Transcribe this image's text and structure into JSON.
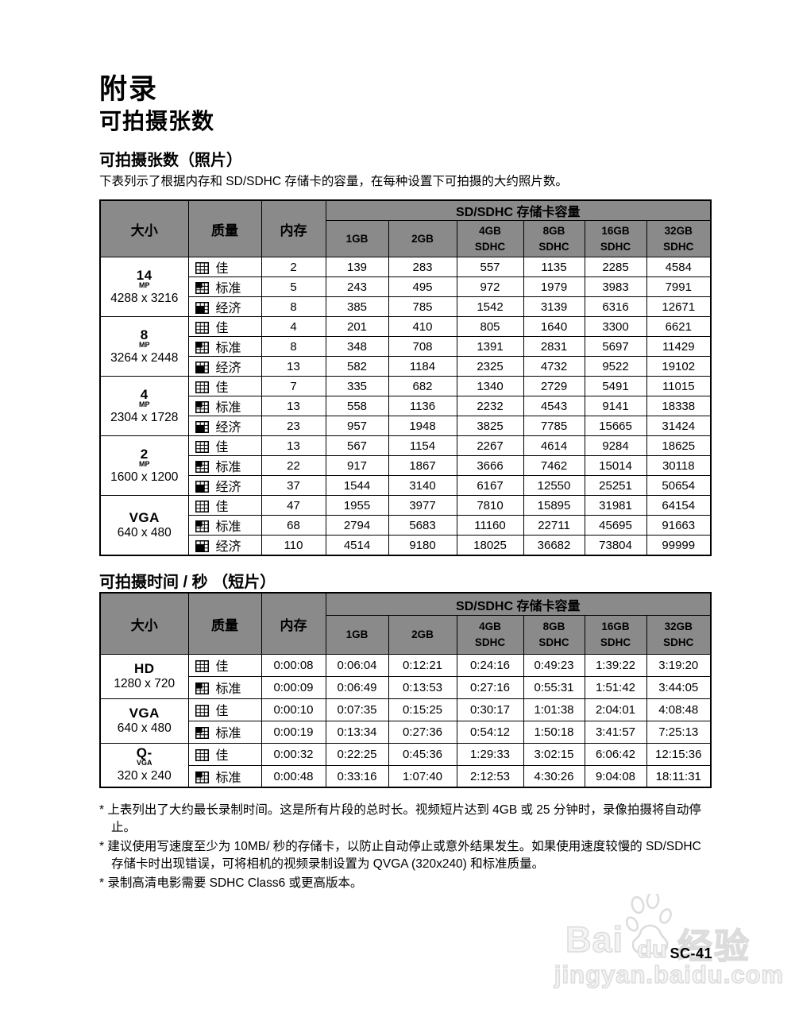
{
  "page": {
    "title": "附录",
    "subtitle": "可拍摄张数",
    "page_number": "SC-41"
  },
  "photo_section": {
    "title": "可拍摄张数（照片）",
    "description": "下表列示了根据内存和 SD/SDHC 存储卡的容量，在每种设置下可拍摄的大约照片数。"
  },
  "video_section": {
    "title": "可拍摄时间 / 秒 （短片）"
  },
  "table_header": {
    "size": "大小",
    "quality": "质量",
    "memory": "内存",
    "card_group": "SD/SDHC 存储卡容量",
    "card_columns": [
      [
        "1GB"
      ],
      [
        "2GB"
      ],
      [
        "4GB",
        "SDHC"
      ],
      [
        "8GB",
        "SDHC"
      ],
      [
        "16GB",
        "SDHC"
      ],
      [
        "32GB",
        "SDHC"
      ]
    ]
  },
  "quality_labels": {
    "fine": "佳",
    "standard": "标准",
    "economy": "经济"
  },
  "colors": {
    "header_bg": "#8a8a8a",
    "border": "#000000",
    "watermark": "#dcdcdc"
  },
  "photo_table": {
    "groups": [
      {
        "size": {
          "big": "14",
          "sub": "MP",
          "res": "4288 x 3216"
        },
        "rows": [
          {
            "quality": "fine",
            "values": [
              "2",
              "139",
              "283",
              "557",
              "1135",
              "2285",
              "4584"
            ]
          },
          {
            "quality": "standard",
            "values": [
              "5",
              "243",
              "495",
              "972",
              "1979",
              "3983",
              "7991"
            ]
          },
          {
            "quality": "economy",
            "values": [
              "8",
              "385",
              "785",
              "1542",
              "3139",
              "6316",
              "12671"
            ]
          }
        ]
      },
      {
        "size": {
          "big": "8",
          "sub": "MP",
          "res": "3264 x 2448"
        },
        "rows": [
          {
            "quality": "fine",
            "values": [
              "4",
              "201",
              "410",
              "805",
              "1640",
              "3300",
              "6621"
            ]
          },
          {
            "quality": "standard",
            "values": [
              "8",
              "348",
              "708",
              "1391",
              "2831",
              "5697",
              "11429"
            ]
          },
          {
            "quality": "economy",
            "values": [
              "13",
              "582",
              "1184",
              "2325",
              "4732",
              "9522",
              "19102"
            ]
          }
        ]
      },
      {
        "size": {
          "big": "4",
          "sub": "MP",
          "res": "2304 x 1728"
        },
        "rows": [
          {
            "quality": "fine",
            "values": [
              "7",
              "335",
              "682",
              "1340",
              "2729",
              "5491",
              "11015"
            ]
          },
          {
            "quality": "standard",
            "values": [
              "13",
              "558",
              "1136",
              "2232",
              "4543",
              "9141",
              "18338"
            ]
          },
          {
            "quality": "economy",
            "values": [
              "23",
              "957",
              "1948",
              "3825",
              "7785",
              "15665",
              "31424"
            ]
          }
        ]
      },
      {
        "size": {
          "big": "2",
          "sub": "MP",
          "res": "1600 x 1200"
        },
        "rows": [
          {
            "quality": "fine",
            "values": [
              "13",
              "567",
              "1154",
              "2267",
              "4614",
              "9284",
              "18625"
            ]
          },
          {
            "quality": "standard",
            "values": [
              "22",
              "917",
              "1867",
              "3666",
              "7462",
              "15014",
              "30118"
            ]
          },
          {
            "quality": "economy",
            "values": [
              "37",
              "1544",
              "3140",
              "6167",
              "12550",
              "25251",
              "50654"
            ]
          }
        ]
      },
      {
        "size": {
          "big": "VGA",
          "sub": "",
          "res": "640 x 480"
        },
        "rows": [
          {
            "quality": "fine",
            "values": [
              "47",
              "1955",
              "3977",
              "7810",
              "15895",
              "31981",
              "64154"
            ]
          },
          {
            "quality": "standard",
            "values": [
              "68",
              "2794",
              "5683",
              "11160",
              "22711",
              "45695",
              "91663"
            ]
          },
          {
            "quality": "economy",
            "values": [
              "110",
              "4514",
              "9180",
              "18025",
              "36682",
              "73804",
              "99999"
            ]
          }
        ]
      }
    ]
  },
  "video_table": {
    "groups": [
      {
        "size": {
          "big": "HD",
          "sub": "",
          "res": "1280 x 720"
        },
        "rows": [
          {
            "quality": "fine",
            "values": [
              "0:00:08",
              "0:06:04",
              "0:12:21",
              "0:24:16",
              "0:49:23",
              "1:39:22",
              "3:19:20"
            ]
          },
          {
            "quality": "standard",
            "values": [
              "0:00:09",
              "0:06:49",
              "0:13:53",
              "0:27:16",
              "0:55:31",
              "1:51:42",
              "3:44:05"
            ]
          }
        ]
      },
      {
        "size": {
          "big": "VGA",
          "sub": "",
          "res": "640 x 480"
        },
        "rows": [
          {
            "quality": "fine",
            "values": [
              "0:00:10",
              "0:07:35",
              "0:15:25",
              "0:30:17",
              "1:01:38",
              "2:04:01",
              "4:08:48"
            ]
          },
          {
            "quality": "standard",
            "values": [
              "0:00:19",
              "0:13:34",
              "0:27:36",
              "0:54:12",
              "1:50:18",
              "3:41:57",
              "7:25:13"
            ]
          }
        ]
      },
      {
        "size": {
          "big": "Q-",
          "sub": "VGA",
          "res": "320 x 240"
        },
        "rows": [
          {
            "quality": "fine",
            "values": [
              "0:00:32",
              "0:22:25",
              "0:45:36",
              "1:29:33",
              "3:02:15",
              "6:06:42",
              "12:15:36"
            ]
          },
          {
            "quality": "standard",
            "values": [
              "0:00:48",
              "0:33:16",
              "1:07:40",
              "2:12:53",
              "4:30:26",
              "9:04:08",
              "18:11:31"
            ]
          }
        ]
      }
    ]
  },
  "footnotes": [
    "* 上表列出了大约最长录制时间。这是所有片段的总时长。视频短片达到 4GB 或 25 分钟时，录像拍摄将自动停止。",
    "* 建议使用写速度至少为 10MB/ 秒的存储卡，以防止自动停止或意外结果发生。如果使用速度较慢的 SD/SDHC 存储卡时出现错误，可将相机的视频录制设置为 QVGA (320x240) 和标准质量。",
    "* 录制高清电影需要 SDHC Class6 或更高版本。"
  ],
  "watermark": {
    "bai": "Bai",
    "du": "du",
    "brand_cn": "经验",
    "url": "jingyan.baidu.com"
  }
}
